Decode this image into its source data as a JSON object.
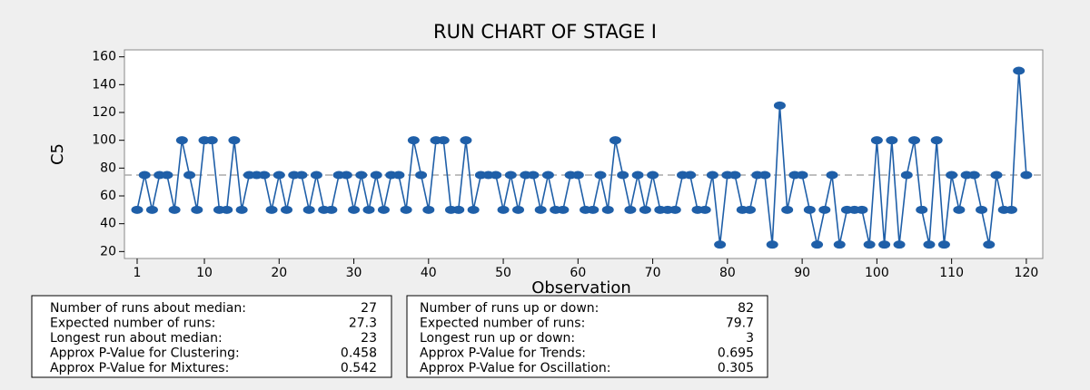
{
  "chart_data": {
    "type": "line",
    "title": "RUN CHART OF STAGE I",
    "xlabel": "Observation",
    "ylabel": "C5",
    "x": [
      1,
      2,
      3,
      4,
      5,
      6,
      7,
      8,
      9,
      10,
      11,
      12,
      13,
      14,
      15,
      16,
      17,
      18,
      19,
      20,
      21,
      22,
      23,
      24,
      25,
      26,
      27,
      28,
      29,
      30,
      31,
      32,
      33,
      34,
      35,
      36,
      37,
      38,
      39,
      40,
      41,
      42,
      43,
      44,
      45,
      46,
      47,
      48,
      49,
      50,
      51,
      52,
      53,
      54,
      55,
      56,
      57,
      58,
      59,
      60,
      61,
      62,
      63,
      64,
      65,
      66,
      67,
      68,
      69,
      70,
      71,
      72,
      73,
      74,
      75,
      76,
      77,
      78,
      79,
      80,
      81,
      82,
      83,
      84,
      85,
      86,
      87,
      88,
      89,
      90,
      91,
      92,
      93,
      94,
      95,
      96,
      97,
      98,
      99,
      100,
      101,
      102,
      103,
      104,
      105,
      106,
      107,
      108,
      109,
      110,
      111,
      112,
      113,
      114,
      115,
      116,
      117,
      118,
      119,
      120
    ],
    "series": [
      {
        "name": "C5",
        "color": "#1f5fa8",
        "values": [
          50,
          75,
          50,
          75,
          75,
          50,
          100,
          75,
          50,
          100,
          100,
          50,
          50,
          100,
          50,
          75,
          75,
          75,
          50,
          75,
          50,
          75,
          75,
          50,
          75,
          50,
          50,
          75,
          75,
          50,
          75,
          50,
          75,
          50,
          75,
          75,
          50,
          100,
          75,
          50,
          100,
          100,
          50,
          50,
          100,
          50,
          75,
          75,
          75,
          50,
          75,
          50,
          75,
          75,
          50,
          75,
          50,
          50,
          75,
          75,
          50,
          50,
          75,
          50,
          100,
          75,
          50,
          75,
          50,
          75,
          50,
          50,
          50,
          75,
          75,
          50,
          50,
          75,
          25,
          75,
          75,
          50,
          50,
          75,
          75,
          25,
          125,
          50,
          75,
          75,
          50,
          25,
          50,
          75,
          25,
          50,
          50,
          50,
          25,
          100,
          25,
          100,
          25,
          75,
          100,
          50,
          25,
          100,
          25,
          75,
          50,
          75,
          75,
          50,
          25,
          75,
          50,
          50,
          150,
          75
        ]
      }
    ],
    "median": 75,
    "xlim": [
      -0.7,
      122.2
    ],
    "ylim": [
      15,
      165
    ],
    "xticks": [
      1,
      10,
      20,
      30,
      40,
      50,
      60,
      70,
      80,
      90,
      100,
      110,
      120
    ],
    "yticks": [
      20,
      40,
      60,
      80,
      100,
      120,
      140,
      160
    ]
  },
  "stats": {
    "left": [
      {
        "label": "Number of runs about median:",
        "value": 27
      },
      {
        "label": "Expected number of runs:",
        "value": 27.3
      },
      {
        "label": "Longest run about median:",
        "value": 23
      },
      {
        "label": "Approx P-Value for Clustering:",
        "value": 0.458
      },
      {
        "label": "Approx P-Value for Mixtures:",
        "value": 0.542
      }
    ],
    "right": [
      {
        "label": "Number of runs up or down:",
        "value": 82
      },
      {
        "label": "Expected number of runs:",
        "value": 79.7
      },
      {
        "label": "Longest run up or down:",
        "value": 3
      },
      {
        "label": "Approx P-Value for Trends:",
        "value": 0.695
      },
      {
        "label": "Approx P-Value for Oscillation:",
        "value": 0.305
      }
    ]
  }
}
